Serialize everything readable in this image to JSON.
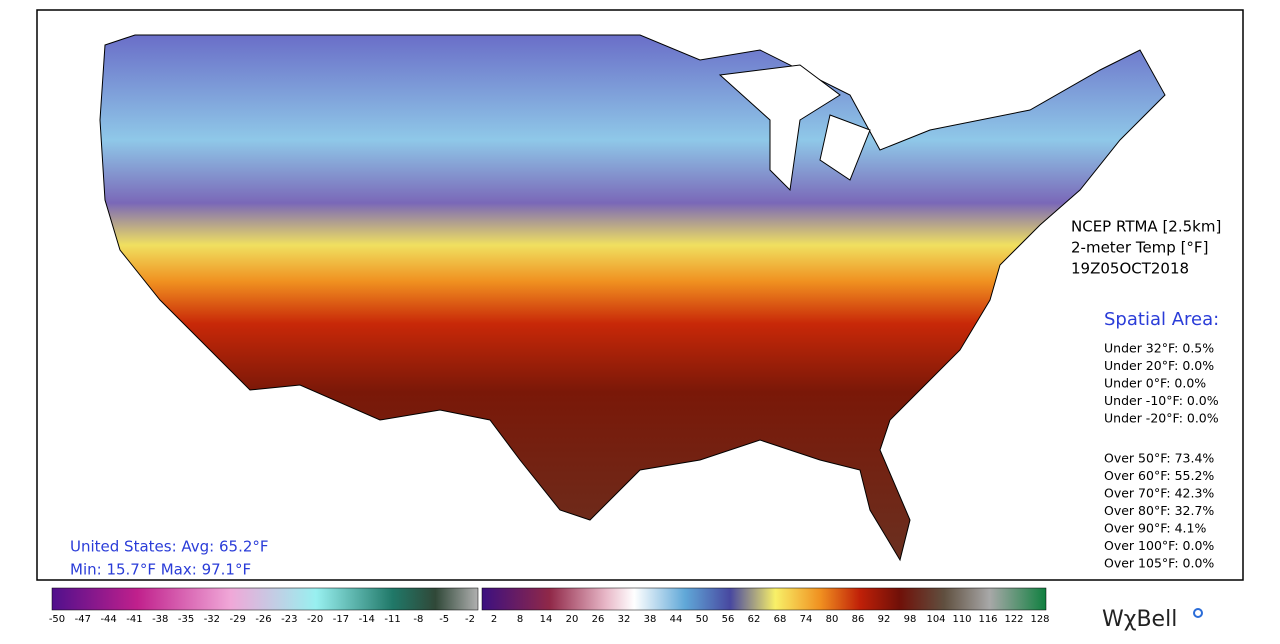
{
  "product": {
    "lines": [
      "NCEP RTMA [2.5km]",
      "2-meter Temp [°F]",
      "19Z05OCT2018"
    ]
  },
  "spatial_area": {
    "title": "Spatial Area:",
    "under": [
      "Under 32°F: 0.5%",
      "Under 20°F: 0.0%",
      "Under 0°F: 0.0%",
      "Under -10°F: 0.0%",
      "Under -20°F: 0.0%"
    ],
    "over": [
      "Over 50°F: 73.4%",
      "Over 60°F: 55.2%",
      "Over 70°F: 42.3%",
      "Over 80°F: 32.7%",
      "Over 90°F: 4.1%",
      "Over 100°F: 0.0%",
      "Over 105°F: 0.0%"
    ]
  },
  "summary": {
    "line1": "United States: Avg:  65.2°F",
    "line2": "Min:  15.7°F Max:  97.1°F"
  },
  "colorbar": {
    "cold_labels": [
      "-50",
      "-47",
      "-44",
      "-41",
      "-38",
      "-35",
      "-32",
      "-29",
      "-26",
      "-23",
      "-20",
      "-17",
      "-14",
      "-11",
      "-8",
      "-5",
      "-2"
    ],
    "warm_labels": [
      "2",
      "8",
      "14",
      "20",
      "26",
      "32",
      "38",
      "44",
      "50",
      "56",
      "62",
      "68",
      "74",
      "80",
      "86",
      "92",
      "98",
      "104",
      "110",
      "116",
      "122",
      "128"
    ]
  },
  "logo": "WχBell"
}
